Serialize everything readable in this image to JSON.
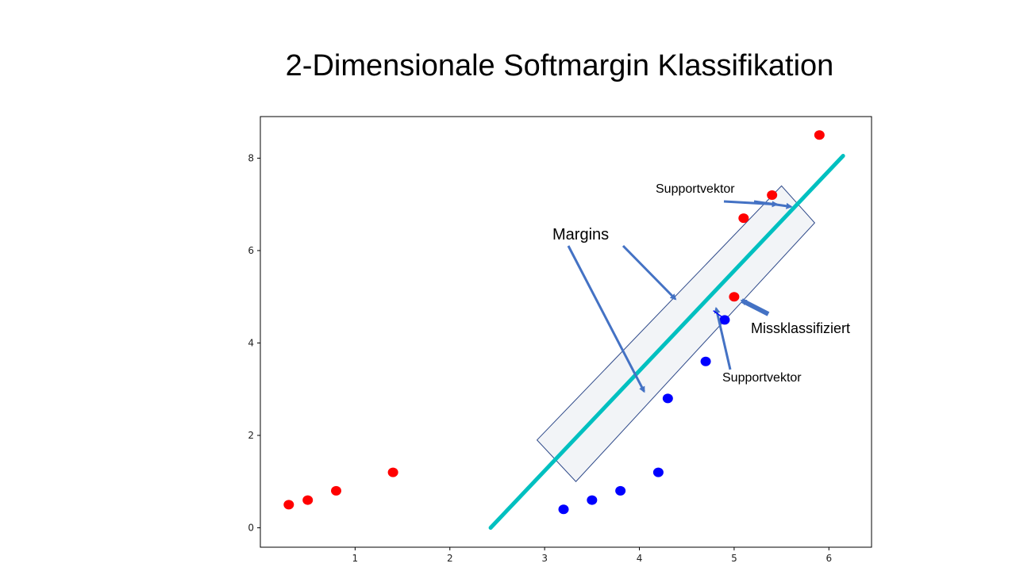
{
  "slide": {
    "title": "2-Dimensionale Softmargin Klassifikation"
  },
  "colors": {
    "red": "#ff0000",
    "blue": "#0000ff",
    "hyperplane": "#00c0c0",
    "arrow": "#4472c4",
    "margin_box_fill": "#f2f4f7",
    "margin_box_stroke": "#2f4a8a"
  },
  "chart_data": {
    "type": "scatter",
    "title": "",
    "xlabel": "",
    "ylabel": "",
    "xlim": [
      0.0,
      6.45
    ],
    "ylim": [
      -0.42,
      8.9
    ],
    "x_ticks": [
      1,
      2,
      3,
      4,
      5,
      6
    ],
    "y_ticks": [
      0,
      2,
      4,
      6,
      8
    ],
    "grid": false,
    "series": [
      {
        "color": "red",
        "points": [
          [
            0.3,
            0.5
          ],
          [
            0.5,
            0.6
          ],
          [
            0.8,
            0.8
          ],
          [
            1.4,
            1.2
          ],
          [
            5.1,
            6.7
          ],
          [
            5.4,
            7.2
          ],
          [
            5.9,
            8.5
          ],
          [
            5.0,
            5.0
          ]
        ]
      },
      {
        "color": "blue",
        "points": [
          [
            3.2,
            0.4
          ],
          [
            3.5,
            0.6
          ],
          [
            3.8,
            0.8
          ],
          [
            4.2,
            1.2
          ],
          [
            4.3,
            2.8
          ],
          [
            4.7,
            3.6
          ],
          [
            4.9,
            4.5
          ]
        ]
      }
    ],
    "hyperplane": {
      "from": [
        2.43,
        0.0
      ],
      "to": [
        6.15,
        8.05
      ]
    },
    "margin_band": {
      "corners": [
        [
          2.92,
          1.9
        ],
        [
          5.5,
          7.4
        ],
        [
          5.85,
          6.6
        ],
        [
          3.33,
          1.0
        ]
      ]
    },
    "annotations": {
      "margins": "Margins",
      "supportvektor_top": "Supportvektor",
      "supportvektor_bottom": "Supportvektor",
      "missklassifiziert": "Missklassifiziert"
    }
  }
}
